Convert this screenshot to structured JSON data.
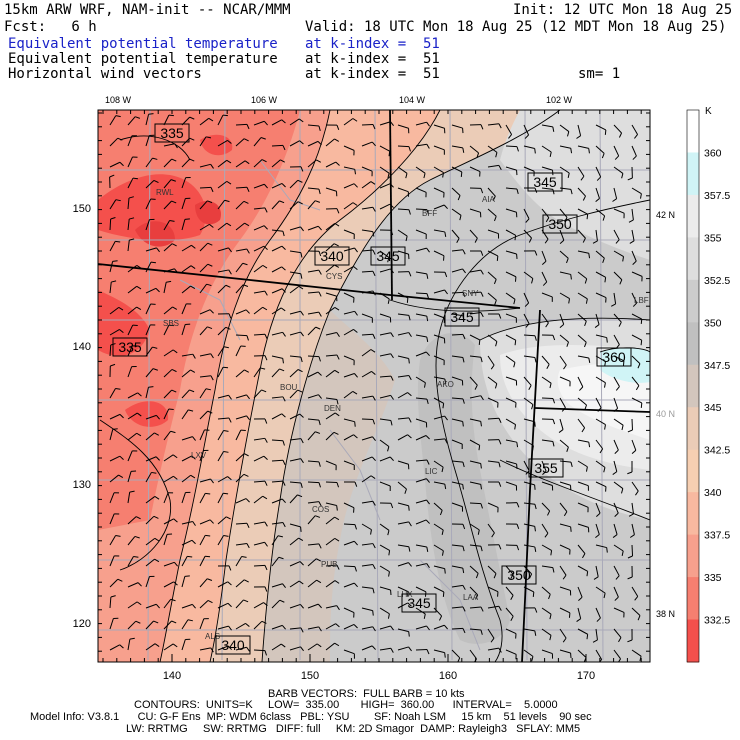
{
  "header": {
    "model": "15km ARW WRF, NAM-init -- NCAR/MMM",
    "init": "Init: 12 UTC Mon 18 Aug 25",
    "fcst": "Fcst:   6 h",
    "valid": "Valid: 18 UTC Mon 18 Aug 25 (12 MDT Mon 18 Aug 25)",
    "rows": [
      {
        "field": "Equivalent potential temperature",
        "level": "at k-index =  51",
        "color": "#1a22c8"
      },
      {
        "field": "Equivalent potential temperature",
        "level": "at k-index =  51",
        "color": "#000000"
      },
      {
        "field": "Horizontal wind vectors",
        "level": "at k-index =  51",
        "color": "#000000"
      }
    ],
    "smoothing": "sm= 1"
  },
  "map": {
    "x_ticks": [
      "140",
      "150",
      "160",
      "170"
    ],
    "y_ticks": [
      "150",
      "140",
      "130",
      "120"
    ],
    "lon_labels": [
      "108 W",
      "106 W",
      "104 W",
      "102 W"
    ],
    "lat_labels": [
      "42 N",
      "40 N",
      "38 N"
    ],
    "stations": [
      "RWL",
      "CYS",
      "SNY",
      "AIA",
      "BFF",
      "SBS",
      "BOU",
      "DEN",
      "AKO",
      "LXV",
      "COS",
      "LIC",
      "PUB",
      "LHX",
      "LAA",
      "ALS",
      "LBF"
    ],
    "contour_labels": [
      "335",
      "340",
      "345",
      "345",
      "350",
      "335",
      "345",
      "360",
      "355",
      "350",
      "345",
      "340"
    ]
  },
  "colorbar": {
    "unit": "K",
    "labels": [
      "360",
      "357.5",
      "355",
      "352.5",
      "350",
      "347.5",
      "345",
      "342.5",
      "340",
      "337.5",
      "335",
      "332.5"
    ],
    "colors": [
      "#ffffff",
      "#d0f4f6",
      "#ececec",
      "#dedede",
      "#cccccc",
      "#c0c0c0",
      "#d3c6bd",
      "#ebccb7",
      "#f6cfb2",
      "#f8b9a0",
      "#f7a08d",
      "#f67f70",
      "#f4504c"
    ]
  },
  "footer": {
    "barb": "BARB VECTORS:  FULL BARB = 10 kts",
    "contours": "CONTOURS:  UNITS=K     LOW=  335.00       HIGH=  360.00      INTERVAL=    5.0000",
    "model_info": "Model Info: V3.8.1      CU: G-F Ens  MP: WDM 6class   PBL: YSU        SF: Noah LSM     15 km    51 levels    90 sec",
    "physics": "LW: RRTMG     SW: RRTMG   DIFF: full     KM: 2D Smagor  DAMP: Rayleigh3   SFLAY: MM5"
  }
}
